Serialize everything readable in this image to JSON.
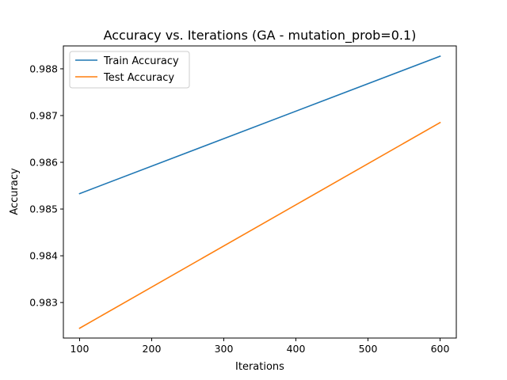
{
  "chart_data": {
    "type": "line",
    "title": "Accuracy vs. Iterations (GA - mutation_prob=0.1)",
    "xlabel": "Iterations",
    "ylabel": "Accuracy",
    "x": [
      100,
      600
    ],
    "xlim": [
      77.5,
      622.5
    ],
    "ylim": [
      0.98224,
      0.98849
    ],
    "xticks": [
      100,
      200,
      300,
      400,
      500,
      600
    ],
    "yticks": [
      0.983,
      0.984,
      0.985,
      0.986,
      0.987,
      0.988
    ],
    "grid": false,
    "legend_position": "upper left",
    "series": [
      {
        "name": "Train Accuracy",
        "color": "#1f77b4",
        "values": [
          0.98533,
          0.98827
        ]
      },
      {
        "name": "Test Accuracy",
        "color": "#ff7f0e",
        "values": [
          0.98245,
          0.98685
        ]
      }
    ]
  }
}
